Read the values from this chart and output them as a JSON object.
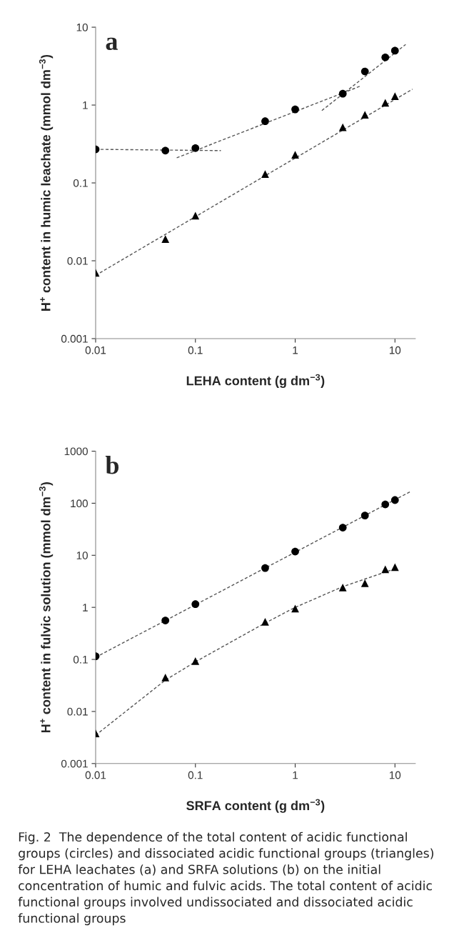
{
  "chart_data": [
    {
      "type": "scatter",
      "xlabel": "LEHA content (g dm$^{−3}$)",
      "ylabel": "H$^{+}$ content in humic leachate (mmol dm$^{−3}$)",
      "log": "xy",
      "xlim": [
        0.01,
        16
      ],
      "ylim": [
        0.001,
        10
      ],
      "xticks": [
        0.01,
        0.1,
        1,
        10
      ],
      "yticks": [
        0.001,
        0.01,
        0.1,
        1,
        10
      ],
      "grid": false,
      "legend": false,
      "annotations": [
        "a"
      ],
      "series": [
        {
          "marker": "circle",
          "color": "#000000",
          "x": [
            0.01,
            0.05,
            0.1,
            0.5,
            1,
            3,
            5,
            8,
            10
          ],
          "values": [
            0.27,
            0.26,
            0.28,
            0.62,
            0.88,
            1.4,
            2.7,
            4.1,
            5.0
          ]
        },
        {
          "marker": "triangle",
          "color": "#000000",
          "x": [
            0.01,
            0.05,
            0.1,
            0.5,
            1,
            3,
            5,
            8,
            10
          ],
          "values": [
            0.007,
            0.019,
            0.038,
            0.13,
            0.23,
            0.52,
            0.75,
            1.07,
            1.3
          ]
        },
        {
          "type": "line",
          "line_style": "dashed",
          "color": "#555555",
          "x": [
            0.01,
            0.18
          ],
          "values": [
            0.27,
            0.26
          ]
        },
        {
          "type": "line",
          "line_style": "dashed",
          "color": "#555555",
          "x": [
            0.065,
            4.6
          ],
          "values": [
            0.21,
            1.77
          ]
        },
        {
          "type": "line",
          "line_style": "dashed",
          "color": "#555555",
          "x": [
            1.85,
            12.8
          ],
          "values": [
            0.85,
            6.0
          ]
        },
        {
          "type": "line",
          "line_style": "dashed",
          "color": "#555555",
          "x": [
            0.01,
            15
          ],
          "values": [
            0.0065,
            1.6
          ]
        }
      ]
    },
    {
      "type": "scatter",
      "xlabel": "SRFA content (g dm$^{−3}$)",
      "ylabel": "H$^{+}$ content in fulvic solution (mmol dm$^{−3}$)",
      "log": "xy",
      "xlim": [
        0.01,
        16
      ],
      "ylim": [
        0.001,
        1000
      ],
      "xticks": [
        0.01,
        0.1,
        1,
        10
      ],
      "yticks": [
        0.001,
        0.01,
        0.1,
        1,
        10,
        100,
        1000
      ],
      "grid": false,
      "legend": false,
      "annotations": [
        "b",
        "Fig. 2  The dependence of the total content of acidic functional groups (circles) and dissociated acidic functional groups (triangles) for LEHA leachates (a) and SRFA solutions (b) on the initial concentration of humic and fulvic acids. The total content of acidic functional groups involved undissociated and dissociated acidic functional groups"
      ],
      "series": [
        {
          "marker": "circle",
          "color": "#000000",
          "x": [
            0.01,
            0.05,
            0.1,
            0.5,
            1,
            3,
            5,
            8,
            10
          ],
          "values": [
            0.115,
            0.56,
            1.15,
            5.7,
            11.8,
            34,
            58,
            95,
            115
          ]
        },
        {
          "marker": "triangle",
          "color": "#000000",
          "x": [
            0.01,
            0.05,
            0.1,
            0.5,
            1,
            3,
            5,
            8,
            10
          ],
          "values": [
            0.0038,
            0.045,
            0.093,
            0.53,
            0.95,
            2.4,
            2.9,
            5.4,
            5.9
          ]
        },
        {
          "type": "line",
          "line_style": "dashed",
          "color": "#555555",
          "x": [
            0.01,
            14.5
          ],
          "values": [
            0.11,
            170
          ]
        },
        {
          "type": "line",
          "line_style": "dashed",
          "color": "#555555",
          "x": [
            0.01,
            0.05,
            0.1,
            0.5,
            1,
            3,
            5,
            10
          ],
          "values": [
            0.0035,
            0.04,
            0.09,
            0.5,
            1.0,
            2.5,
            3.5,
            5.5
          ]
        }
      ]
    }
  ]
}
